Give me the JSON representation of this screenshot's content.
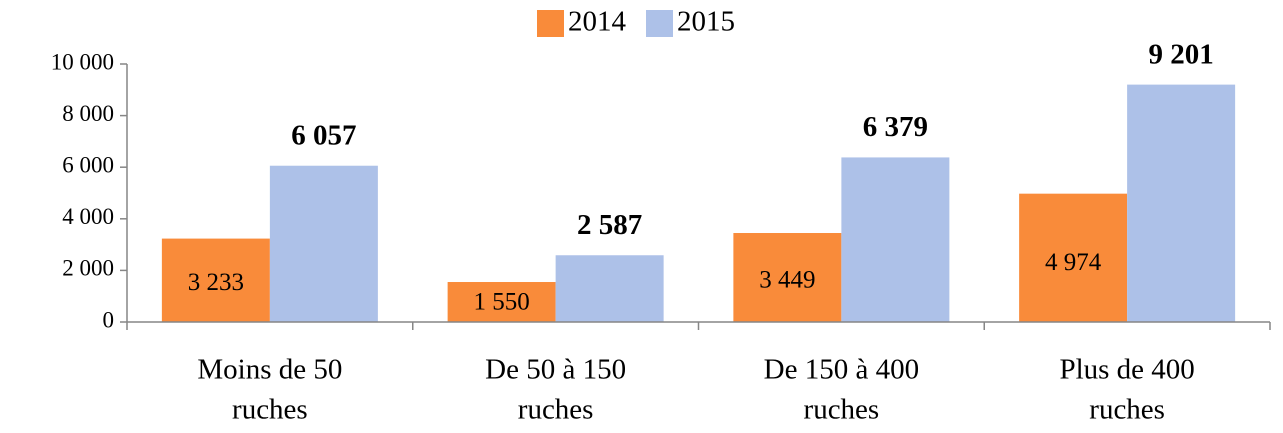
{
  "chart_data": {
    "type": "bar",
    "categories": [
      [
        "Moins de 50",
        "ruches"
      ],
      [
        "De 50 à 150",
        "ruches"
      ],
      [
        "De 150 à 400",
        "ruches"
      ],
      [
        "Plus de 400",
        "ruches"
      ]
    ],
    "series": [
      {
        "name": "2014",
        "color": "#f98b3a",
        "values": [
          3233,
          1550,
          3449,
          4974
        ],
        "value_labels": [
          "3 233",
          "1 550",
          "3 449",
          "4 974"
        ]
      },
      {
        "name": "2015",
        "color": "#adc1e8",
        "values": [
          6057,
          2587,
          6379,
          9201
        ],
        "value_labels": [
          "6 057",
          "2 587",
          "6 379",
          "9 201"
        ]
      }
    ],
    "ylim": [
      0,
      10000
    ],
    "yticks": [
      0,
      {
        "value": 2000,
        "label": "2 000"
      },
      {
        "value": 4000,
        "label": "4 000"
      },
      {
        "value": 6000,
        "label": "6 000"
      },
      {
        "value": 8000,
        "label": "8 000"
      },
      {
        "value": 10000,
        "label": "10 000"
      }
    ],
    "legend": "top"
  }
}
